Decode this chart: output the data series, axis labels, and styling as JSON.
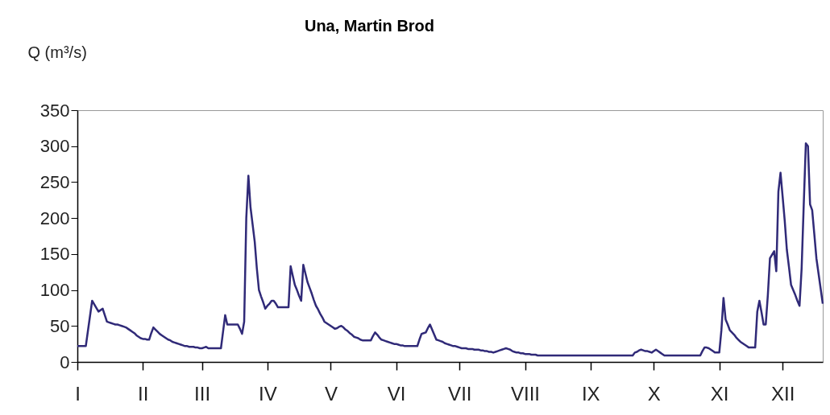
{
  "chart_data": {
    "type": "line",
    "title": "Una, Martin Brod",
    "ylabel": "Q (m³/s)",
    "categories": [
      "I",
      null,
      null,
      null,
      null,
      null,
      null,
      null,
      null,
      null,
      null,
      null,
      null,
      null,
      null,
      null,
      null,
      null,
      null,
      null,
      null,
      null,
      null,
      null,
      null,
      null,
      null,
      null,
      null,
      null,
      null,
      "II",
      null,
      null,
      null,
      null,
      null,
      null,
      null,
      null,
      null,
      null,
      null,
      null,
      null,
      null,
      null,
      null,
      null,
      null,
      null,
      null,
      null,
      null,
      null,
      null,
      null,
      null,
      null,
      "III",
      null,
      null,
      null,
      null,
      null,
      null,
      null,
      null,
      null,
      null,
      null,
      null,
      null,
      null,
      null,
      null,
      null,
      null,
      null,
      null,
      null,
      null,
      null,
      null,
      null,
      null,
      null,
      null,
      null,
      null,
      "IV",
      null,
      null,
      null,
      null,
      null,
      null,
      null,
      null,
      null,
      null,
      null,
      null,
      null,
      null,
      null,
      null,
      null,
      null,
      null,
      null,
      null,
      null,
      null,
      null,
      null,
      null,
      null,
      null,
      null,
      "V",
      null,
      null,
      null,
      null,
      null,
      null,
      null,
      null,
      null,
      null,
      null,
      null,
      null,
      null,
      null,
      null,
      null,
      null,
      null,
      null,
      null,
      null,
      null,
      null,
      null,
      null,
      null,
      null,
      null,
      null,
      "VI",
      null,
      null,
      null,
      null,
      null,
      null,
      null,
      null,
      null,
      null,
      null,
      null,
      null,
      null,
      null,
      null,
      null,
      null,
      null,
      null,
      null,
      null,
      null,
      null,
      null,
      null,
      null,
      null,
      null,
      "VII",
      null,
      null,
      null,
      null,
      null,
      null,
      null,
      null,
      null,
      null,
      null,
      null,
      null,
      null,
      null,
      null,
      null,
      null,
      null,
      null,
      null,
      null,
      null,
      null,
      null,
      null,
      null,
      null,
      null,
      null,
      "VIII",
      null,
      null,
      null,
      null,
      null,
      null,
      null,
      null,
      null,
      null,
      null,
      null,
      null,
      null,
      null,
      null,
      null,
      null,
      null,
      null,
      null,
      null,
      null,
      null,
      null,
      null,
      null,
      null,
      null,
      null,
      "IX",
      null,
      null,
      null,
      null,
      null,
      null,
      null,
      null,
      null,
      null,
      null,
      null,
      null,
      null,
      null,
      null,
      null,
      null,
      null,
      null,
      null,
      null,
      null,
      null,
      null,
      null,
      null,
      null,
      null,
      "X",
      null,
      null,
      null,
      null,
      null,
      null,
      null,
      null,
      null,
      null,
      null,
      null,
      null,
      null,
      null,
      null,
      null,
      null,
      null,
      null,
      null,
      null,
      null,
      null,
      null,
      null,
      null,
      null,
      null,
      null,
      "XI",
      null,
      null,
      null,
      null,
      null,
      null,
      null,
      null,
      null,
      null,
      null,
      null,
      null,
      null,
      null,
      null,
      null,
      null,
      null,
      null,
      null,
      null,
      null,
      null,
      null,
      null,
      null,
      null,
      null,
      "XII",
      null,
      null,
      null,
      null,
      null,
      null,
      null,
      null,
      null,
      null,
      null,
      null,
      null,
      null,
      null,
      null,
      null,
      null,
      null
    ],
    "series": [
      {
        "color": "#302a78",
        "values": [
          22,
          22,
          22,
          22,
          22,
          43,
          64,
          85,
          80,
          75,
          70,
          72,
          74,
          65,
          56,
          55,
          54,
          53,
          52,
          52,
          51,
          50,
          49,
          48,
          46,
          44,
          42,
          40,
          37,
          35,
          33,
          32,
          32,
          31,
          31,
          40,
          48,
          45,
          42,
          39,
          37,
          35,
          33,
          31,
          30,
          28,
          27,
          26,
          25,
          24,
          23,
          22,
          22,
          21,
          21,
          21,
          20,
          20,
          19,
          19,
          20,
          21,
          19,
          19,
          19,
          19,
          19,
          19,
          19,
          42,
          65,
          52,
          52,
          52,
          52,
          52,
          52,
          46,
          39,
          56,
          200,
          259,
          215,
          191,
          167,
          130,
          100,
          91,
          83,
          74,
          78,
          81,
          85,
          85,
          81,
          76,
          76,
          76,
          76,
          76,
          76,
          133,
          120,
          107,
          100,
          92,
          85,
          135,
          123,
          111,
          103,
          95,
          86,
          78,
          73,
          67,
          62,
          56,
          54,
          52,
          50,
          48,
          46,
          47,
          49,
          50,
          48,
          45,
          43,
          40,
          38,
          35,
          34,
          33,
          31,
          30,
          30,
          30,
          30,
          30,
          36,
          41,
          38,
          34,
          31,
          30,
          29,
          28,
          27,
          26,
          25,
          25,
          24,
          23,
          23,
          22,
          22,
          22,
          22,
          22,
          22,
          22,
          31,
          39,
          40,
          41,
          47,
          52,
          45,
          38,
          31,
          30,
          29,
          28,
          26,
          25,
          24,
          23,
          22,
          22,
          21,
          20,
          19,
          19,
          19,
          18,
          18,
          18,
          17,
          17,
          17,
          16,
          16,
          15,
          15,
          14,
          14,
          13,
          14,
          15,
          16,
          17,
          18,
          19,
          18,
          17,
          15,
          14,
          13,
          13,
          12,
          12,
          11,
          11,
          11,
          10,
          10,
          10,
          9,
          9,
          9,
          9,
          9,
          9,
          9,
          9,
          9,
          9,
          9,
          9,
          9,
          9,
          9,
          9,
          9,
          9,
          9,
          9,
          9,
          9,
          9,
          9,
          9,
          9,
          9,
          9,
          9,
          9,
          9,
          9,
          9,
          9,
          9,
          9,
          9,
          9,
          9,
          9,
          9,
          9,
          9,
          9,
          9,
          9,
          13,
          14,
          16,
          17,
          16,
          15,
          15,
          14,
          13,
          15,
          17,
          15,
          13,
          11,
          9,
          9,
          9,
          9,
          9,
          9,
          9,
          9,
          9,
          9,
          9,
          9,
          9,
          9,
          9,
          9,
          9,
          9,
          15,
          20,
          20,
          19,
          17,
          15,
          13,
          13,
          13,
          44,
          89,
          59,
          52,
          44,
          41,
          38,
          34,
          31,
          28,
          26,
          24,
          22,
          20,
          20,
          20,
          20,
          70,
          85,
          69,
          52,
          52,
          93,
          144,
          149,
          154,
          126,
          237,
          263,
          230,
          196,
          156,
          132,
          107,
          100,
          93,
          85,
          78,
          130,
          219,
          304,
          300,
          219,
          211,
          178,
          144,
          123,
          102,
          81
        ]
      }
    ],
    "ylim": [
      0,
      350
    ],
    "yticks": [
      0,
      50,
      100,
      150,
      200,
      250,
      300,
      350
    ]
  }
}
